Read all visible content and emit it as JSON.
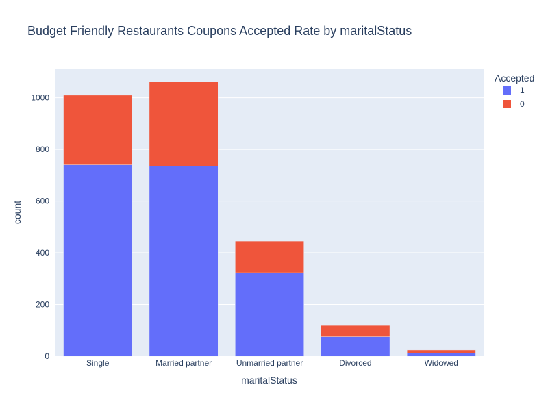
{
  "chart_data": {
    "type": "bar",
    "barmode": "stack",
    "title": "Budget Friendly Restaurants Coupons Accepted Rate by maritalStatus",
    "xlabel": "maritalStatus",
    "ylabel": "count",
    "categories": [
      "Single",
      "Married partner",
      "Unmarried partner",
      "Divorced",
      "Widowed"
    ],
    "ylim": [
      0,
      1113
    ],
    "yticks": [
      0,
      200,
      400,
      600,
      800,
      1000
    ],
    "grid": true,
    "legend": {
      "title": "Accepted",
      "placement": "top-right"
    },
    "series": [
      {
        "name": "1",
        "color": "#636efa",
        "values": [
          740,
          735,
          323,
          75,
          12
        ]
      },
      {
        "name": "0",
        "color": "#ef553b",
        "values": [
          270,
          327,
          122,
          44,
          12
        ]
      }
    ]
  },
  "colors": {
    "plot_bg": "#e5ecf6",
    "grid": "#ffffff",
    "text": "#2a3f5f"
  }
}
